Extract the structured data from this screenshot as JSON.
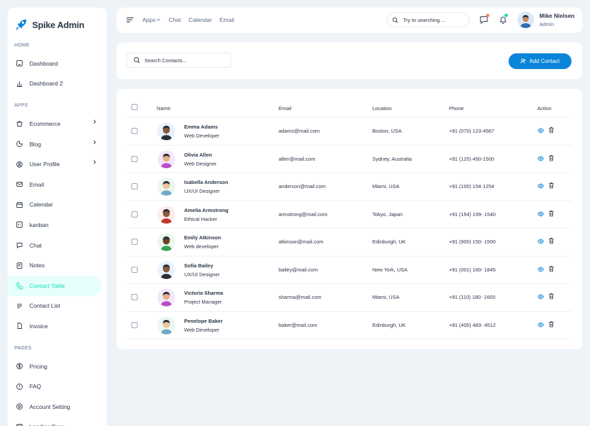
{
  "brand": {
    "name": "Spike Admin"
  },
  "sidebar": {
    "sections": [
      {
        "title": "HOME",
        "items": [
          {
            "label": "Dashboard",
            "icon": "home-icon"
          },
          {
            "label": "Dashboard 2",
            "icon": "chart-icon"
          }
        ]
      },
      {
        "title": "APPS",
        "items": [
          {
            "label": "Ecommerce",
            "icon": "basket-icon",
            "chevron": true
          },
          {
            "label": "Blog",
            "icon": "pie-icon",
            "chevron": true
          },
          {
            "label": "User Profile",
            "icon": "user-circle-icon",
            "chevron": true
          },
          {
            "label": "Email",
            "icon": "mail-icon"
          },
          {
            "label": "Calendar",
            "icon": "calendar-icon"
          },
          {
            "label": "kanban",
            "icon": "kanban-icon"
          },
          {
            "label": "Chat",
            "icon": "chat-icon"
          },
          {
            "label": "Notes",
            "icon": "notes-icon"
          },
          {
            "label": "Contact Table",
            "icon": "phone-icon",
            "active": true
          },
          {
            "label": "Contact List",
            "icon": "list-icon"
          },
          {
            "label": "Invoice",
            "icon": "file-icon"
          }
        ]
      },
      {
        "title": "PAGES",
        "items": [
          {
            "label": "Pricing",
            "icon": "currency-icon"
          },
          {
            "label": "FAQ",
            "icon": "help-icon"
          },
          {
            "label": "Account Setting",
            "icon": "settings-icon"
          },
          {
            "label": "Landing Page",
            "icon": "app-window-icon"
          }
        ]
      }
    ]
  },
  "header": {
    "nav": [
      "Apps",
      "Chat",
      "Calendar",
      "Email"
    ],
    "search_placeholder": "Try to searching ...",
    "user": {
      "name": "Mike Nielsen",
      "role": "Admin"
    }
  },
  "toolbar": {
    "search_placeholder": "Search Contacts...",
    "add_label": "Add Contact"
  },
  "table": {
    "columns": [
      "Name",
      "Email",
      "Location",
      "Phone",
      "Action"
    ],
    "rows": [
      {
        "name": "Emma Adams",
        "role": "Web Developer",
        "email": "adams@mail.com",
        "location": "Boston, USA",
        "phone": "+91 (070) 123-4567",
        "avatar_bg": "#e8f2fc",
        "skin": "#8a5a3c",
        "shirt": "#2a2f3a"
      },
      {
        "name": "Olivia Allen",
        "role": "Web Designer",
        "email": "allen@mail.com",
        "location": "Sydney, Australia",
        "phone": "+91 (125) 450-1500",
        "avatar_bg": "#f3e8fb",
        "skin": "#e8b08a",
        "shirt": "#b84fc9"
      },
      {
        "name": "Isabella Anderson",
        "role": "UX/UI Designer",
        "email": "anderson@mail.com",
        "location": "Miami, USA",
        "phone": "+91 (100) 154-1254",
        "avatar_bg": "#eaf6ee",
        "skin": "#f0c39a",
        "shirt": "#6fa8c8"
      },
      {
        "name": "Amelia Armstrong",
        "role": "Ethical Hacker",
        "email": "armstrong@mail.com",
        "location": "Tokyo, Japan",
        "phone": "+91 (154) 199- 1540",
        "avatar_bg": "#fdeceb",
        "skin": "#8a5a3c",
        "shirt": "#c0392b"
      },
      {
        "name": "Emily Atkinson",
        "role": "Web developer",
        "email": "atkinson@mail.com",
        "location": "Edinburgh, UK",
        "phone": "+91 (900) 150- 1500",
        "avatar_bg": "#e9f7ec",
        "skin": "#6b4226",
        "shirt": "#3aa05a"
      },
      {
        "name": "Sofia Bailey",
        "role": "UX/UI Designer",
        "email": "bailey@mail.com",
        "location": "New York, USA",
        "phone": "+91 (001) 160- 1845",
        "avatar_bg": "#e8f2fc",
        "skin": "#8a5a3c",
        "shirt": "#2a2f3a"
      },
      {
        "name": "Victoria Sharma",
        "role": "Project Manager",
        "email": "sharma@mail.com",
        "location": "Miami, USA",
        "phone": "+91 (110) 180- 1600",
        "avatar_bg": "#f3e8fb",
        "skin": "#e8b08a",
        "shirt": "#b84fc9"
      },
      {
        "name": "Penelope Baker",
        "role": "Web Developer",
        "email": "baker@mail.com",
        "location": "Edinburgh, UK",
        "phone": "+91 (405) 483- 4512",
        "avatar_bg": "#eaf6ee",
        "skin": "#f0c39a",
        "shirt": "#6fa8c8"
      }
    ]
  },
  "colors": {
    "primary": "#0a85d9",
    "active": "#13deb9",
    "active_bg": "#e6fffa",
    "text": "#2a3547",
    "muted": "#5a6a85"
  }
}
